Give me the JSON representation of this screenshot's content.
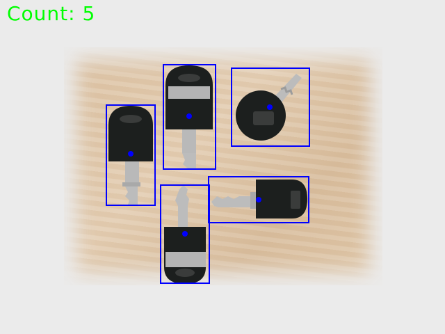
{
  "overlay": {
    "count_text": "Count: 5"
  },
  "colors": {
    "count_text": "#00ff00",
    "box_stroke": "#0000ff",
    "center_dot": "#0000ff",
    "key_head": "#1c1f1e",
    "key_blade": "#b9b9b9",
    "wood_surface": "#dcc2a3",
    "background": "#ebebeb"
  },
  "detections": [
    {
      "label": "key",
      "shape": "vertical-head-up"
    },
    {
      "label": "key",
      "shape": "vertical-head-up"
    },
    {
      "label": "key",
      "shape": "round-head-diagonal"
    },
    {
      "label": "key",
      "shape": "vertical-head-down"
    },
    {
      "label": "key",
      "shape": "horizontal-head-right"
    }
  ]
}
